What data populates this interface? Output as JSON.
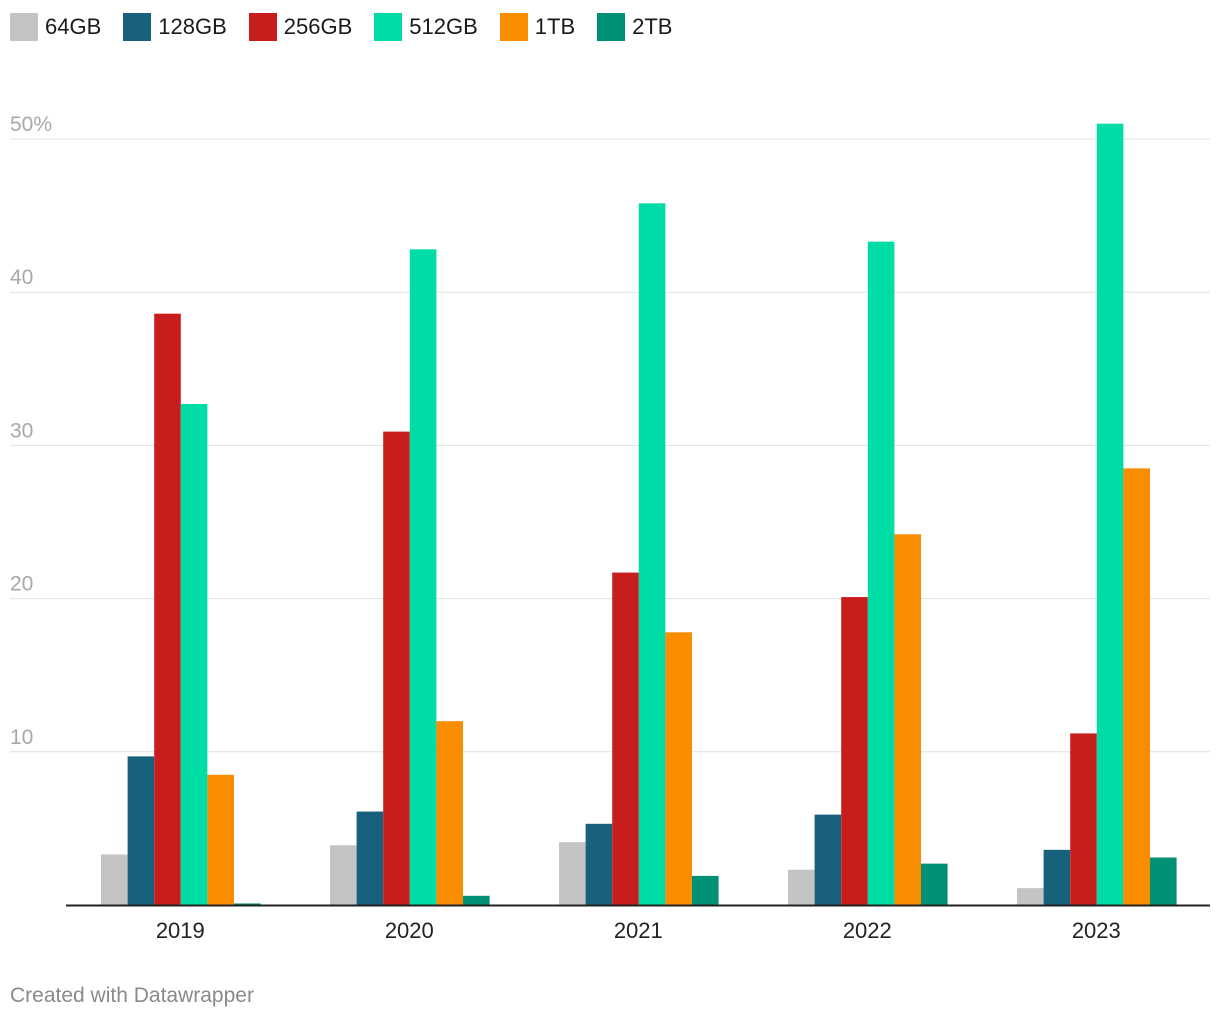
{
  "chart_data": {
    "type": "bar",
    "categories": [
      "2019",
      "2020",
      "2021",
      "2022",
      "2023"
    ],
    "series": [
      {
        "name": "64GB",
        "color": "#c4c4c4",
        "values": [
          3.3,
          3.9,
          4.1,
          2.3,
          1.1
        ]
      },
      {
        "name": "128GB",
        "color": "#18617c",
        "values": [
          9.7,
          6.1,
          5.3,
          5.9,
          3.6
        ]
      },
      {
        "name": "256GB",
        "color": "#c71e1d",
        "values": [
          38.6,
          30.9,
          21.7,
          20.1,
          11.2
        ]
      },
      {
        "name": "512GB",
        "color": "#00dca6",
        "values": [
          32.7,
          42.8,
          45.8,
          43.3,
          51.0
        ]
      },
      {
        "name": "1TB",
        "color": "#fa8c00",
        "values": [
          8.5,
          12.0,
          17.8,
          24.2,
          28.5
        ]
      },
      {
        "name": "2TB",
        "color": "#009076",
        "values": [
          0.1,
          0.6,
          1.9,
          2.7,
          3.1
        ]
      }
    ],
    "yticks": [
      {
        "value": 10,
        "label": "10"
      },
      {
        "value": 20,
        "label": "20"
      },
      {
        "value": 30,
        "label": "30"
      },
      {
        "value": 40,
        "label": "40"
      },
      {
        "value": 50,
        "label": "50%"
      }
    ],
    "ylim": [
      0,
      50
    ],
    "title": "",
    "xlabel": "",
    "ylabel": "",
    "legend": "top-left",
    "grid": true
  },
  "footer": {
    "credit": "Created with Datawrapper"
  }
}
